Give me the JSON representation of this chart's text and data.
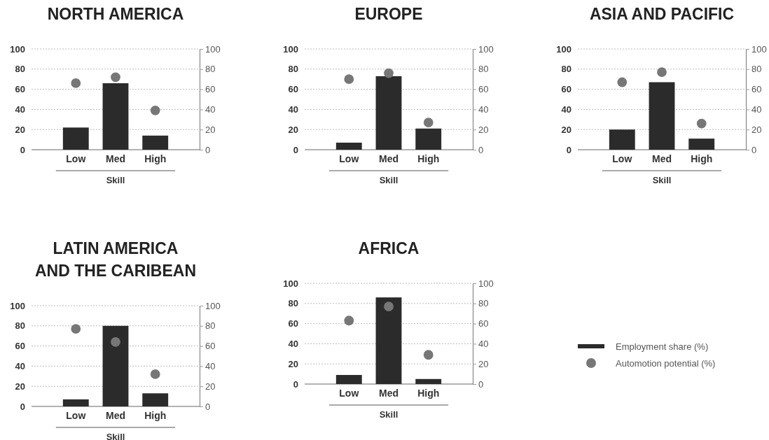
{
  "chart_data": [
    {
      "type": "bar",
      "title": "NORTH AMERICA",
      "xlabel": "Skill",
      "categories": [
        "Low",
        "Med",
        "High"
      ],
      "ylim": [
        0,
        100
      ],
      "yticks": [
        0,
        20,
        40,
        60,
        80,
        100
      ],
      "y2lim": [
        0,
        100
      ],
      "y2ticks": [
        0,
        20,
        40,
        60,
        80,
        100
      ],
      "grid": "y",
      "legend": false,
      "series": [
        {
          "type": "bar",
          "color": "#2b2b2b",
          "values": [
            22,
            66,
            14
          ]
        },
        {
          "type": "scatter",
          "axis": "y2",
          "color": "#777777",
          "marker": "circle",
          "values": [
            66,
            72,
            39
          ]
        }
      ]
    },
    {
      "type": "bar",
      "title": "EUROPE",
      "xlabel": "Skill",
      "categories": [
        "Low",
        "Med",
        "High"
      ],
      "ylim": [
        0,
        100
      ],
      "yticks": [
        0,
        20,
        40,
        60,
        80,
        100
      ],
      "y2lim": [
        0,
        100
      ],
      "y2ticks": [
        0,
        20,
        40,
        60,
        80,
        100
      ],
      "grid": "y",
      "legend": false,
      "series": [
        {
          "type": "bar",
          "color": "#2b2b2b",
          "values": [
            7,
            73,
            21
          ]
        },
        {
          "type": "scatter",
          "axis": "y2",
          "color": "#777777",
          "marker": "circle",
          "values": [
            70,
            76,
            27
          ]
        }
      ]
    },
    {
      "type": "bar",
      "title": "ASIA AND PACIFIC",
      "xlabel": "Skill",
      "categories": [
        "Low",
        "Med",
        "High"
      ],
      "ylim": [
        0,
        100
      ],
      "yticks": [
        0,
        20,
        40,
        60,
        80,
        100
      ],
      "y2lim": [
        0,
        100
      ],
      "y2ticks": [
        0,
        20,
        40,
        60,
        80,
        100
      ],
      "grid": "y",
      "legend": false,
      "series": [
        {
          "type": "bar",
          "color": "#2b2b2b",
          "values": [
            20,
            67,
            11
          ]
        },
        {
          "type": "scatter",
          "axis": "y2",
          "color": "#777777",
          "marker": "circle",
          "values": [
            67,
            77,
            26
          ]
        }
      ]
    },
    {
      "type": "bar",
      "title": "LATIN AMERICA\nAND THE CARIBEAN",
      "xlabel": "Skill",
      "categories": [
        "Low",
        "Med",
        "High"
      ],
      "ylim": [
        0,
        100
      ],
      "yticks": [
        0,
        20,
        40,
        60,
        80,
        100
      ],
      "y2lim": [
        0,
        100
      ],
      "y2ticks": [
        0,
        20,
        40,
        60,
        80,
        100
      ],
      "grid": "y",
      "legend": false,
      "series": [
        {
          "type": "bar",
          "color": "#2b2b2b",
          "values": [
            7,
            80,
            13
          ]
        },
        {
          "type": "scatter",
          "axis": "y2",
          "color": "#777777",
          "marker": "circle",
          "values": [
            77,
            64,
            32
          ]
        }
      ]
    },
    {
      "type": "bar",
      "title": "AFRICA",
      "xlabel": "Skill",
      "categories": [
        "Low",
        "Med",
        "High"
      ],
      "ylim": [
        0,
        100
      ],
      "yticks": [
        0,
        20,
        40,
        60,
        80,
        100
      ],
      "y2lim": [
        0,
        100
      ],
      "y2ticks": [
        0,
        20,
        40,
        60,
        80,
        100
      ],
      "grid": "y",
      "legend": "right",
      "series": [
        {
          "type": "bar",
          "name": "Employment share (%)",
          "color": "#2b2b2b",
          "values": [
            9,
            86,
            5
          ]
        },
        {
          "type": "scatter",
          "axis": "y2",
          "name": "Automotion potential (%)",
          "color": "#777777",
          "marker": "circle",
          "values": [
            63,
            77,
            29
          ]
        }
      ]
    }
  ]
}
